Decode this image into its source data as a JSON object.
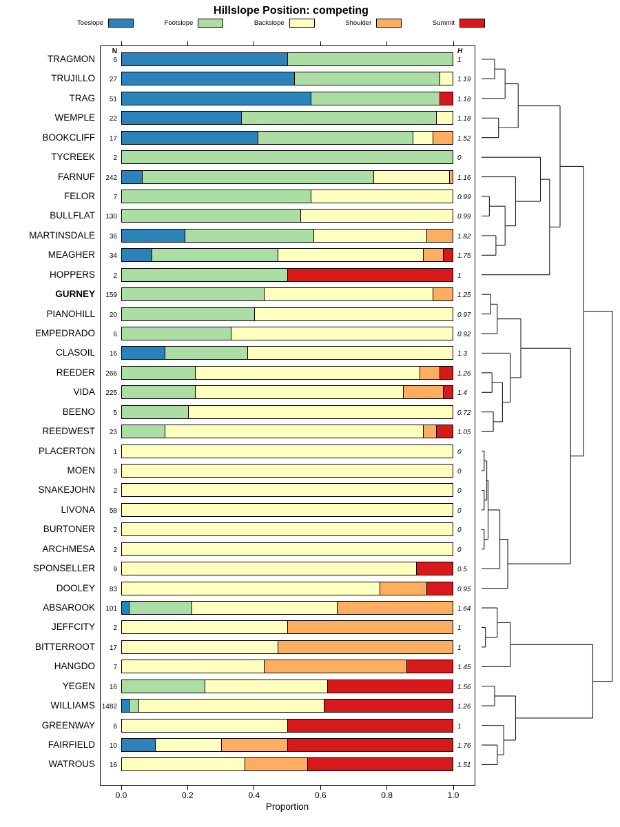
{
  "title": "Hillslope Position: competing",
  "axis": {
    "xlabel": "Proportion",
    "tick_labels": [
      "0.0",
      "0.2",
      "0.4",
      "0.6",
      "0.8",
      "1.0"
    ],
    "tick_values": [
      0,
      0.2,
      0.4,
      0.6,
      0.8,
      1.0
    ],
    "n_header": "N",
    "h_header": "H"
  },
  "legend": {
    "items": [
      {
        "label": "Toeslope",
        "color": "#2B83BA"
      },
      {
        "label": "Footslope",
        "color": "#ABDDA4"
      },
      {
        "label": "Backslope",
        "color": "#FFFFBF"
      },
      {
        "label": "Shoulder",
        "color": "#FDAE61"
      },
      {
        "label": "Summit",
        "color": "#D7191C"
      }
    ]
  },
  "chart_data": {
    "type": "bar",
    "subtype": "horizontal-stacked-proportion",
    "title": "Hillslope Position: competing",
    "xlabel": "Proportion",
    "xlim": [
      0,
      1
    ],
    "categories": [
      "Toeslope",
      "Footslope",
      "Backslope",
      "Shoulder",
      "Summit"
    ],
    "colors": [
      "#2B83BA",
      "#ABDDA4",
      "#FFFFBF",
      "#FDAE61",
      "#D7191C"
    ],
    "rows": [
      {
        "name": "TRAGMON",
        "n": 6,
        "h": "1",
        "bold": false,
        "values": [
          0.5,
          0.5,
          0.0,
          0.0,
          0.0
        ]
      },
      {
        "name": "TRUJILLO",
        "n": 27,
        "h": "1.19",
        "bold": false,
        "values": [
          0.52,
          0.44,
          0.04,
          0.0,
          0.0
        ]
      },
      {
        "name": "TRAG",
        "n": 51,
        "h": "1.18",
        "bold": false,
        "values": [
          0.57,
          0.39,
          0.0,
          0.0,
          0.04
        ]
      },
      {
        "name": "WEMPLE",
        "n": 22,
        "h": "1.18",
        "bold": false,
        "values": [
          0.36,
          0.59,
          0.05,
          0.0,
          0.0
        ]
      },
      {
        "name": "BOOKCLIFF",
        "n": 17,
        "h": "1.52",
        "bold": false,
        "values": [
          0.41,
          0.47,
          0.06,
          0.06,
          0.0
        ]
      },
      {
        "name": "TYCREEK",
        "n": 2,
        "h": "0",
        "bold": false,
        "values": [
          0.0,
          1.0,
          0.0,
          0.0,
          0.0
        ]
      },
      {
        "name": "FARNUF",
        "n": 242,
        "h": "1.16",
        "bold": false,
        "values": [
          0.06,
          0.7,
          0.23,
          0.01,
          0.0
        ]
      },
      {
        "name": "FELOR",
        "n": 7,
        "h": "0.99",
        "bold": false,
        "values": [
          0.0,
          0.57,
          0.43,
          0.0,
          0.0
        ]
      },
      {
        "name": "BULLFLAT",
        "n": 130,
        "h": "0.99",
        "bold": false,
        "values": [
          0.0,
          0.54,
          0.46,
          0.0,
          0.0
        ]
      },
      {
        "name": "MARTINSDALE",
        "n": 36,
        "h": "1.82",
        "bold": false,
        "values": [
          0.19,
          0.39,
          0.34,
          0.08,
          0.0
        ]
      },
      {
        "name": "MEAGHER",
        "n": 34,
        "h": "1.75",
        "bold": false,
        "values": [
          0.09,
          0.38,
          0.44,
          0.06,
          0.03
        ]
      },
      {
        "name": "HOPPERS",
        "n": 2,
        "h": "1",
        "bold": false,
        "values": [
          0.0,
          0.5,
          0.0,
          0.0,
          0.5
        ]
      },
      {
        "name": "GURNEY",
        "n": 159,
        "h": "1.25",
        "bold": true,
        "values": [
          0.0,
          0.43,
          0.51,
          0.06,
          0.0
        ]
      },
      {
        "name": "PIANOHILL",
        "n": 20,
        "h": "0.97",
        "bold": false,
        "values": [
          0.0,
          0.4,
          0.6,
          0.0,
          0.0
        ]
      },
      {
        "name": "EMPEDRADO",
        "n": 6,
        "h": "0.92",
        "bold": false,
        "values": [
          0.0,
          0.33,
          0.67,
          0.0,
          0.0
        ]
      },
      {
        "name": "CLASOIL",
        "n": 16,
        "h": "1.3",
        "bold": false,
        "values": [
          0.13,
          0.25,
          0.62,
          0.0,
          0.0
        ]
      },
      {
        "name": "REEDER",
        "n": 266,
        "h": "1.26",
        "bold": false,
        "values": [
          0.0,
          0.22,
          0.68,
          0.06,
          0.04
        ]
      },
      {
        "name": "VIDA",
        "n": 225,
        "h": "1.4",
        "bold": false,
        "values": [
          0.0,
          0.22,
          0.63,
          0.12,
          0.03
        ]
      },
      {
        "name": "BEENO",
        "n": 5,
        "h": "0.72",
        "bold": false,
        "values": [
          0.0,
          0.2,
          0.8,
          0.0,
          0.0
        ]
      },
      {
        "name": "REEDWEST",
        "n": 23,
        "h": "1.05",
        "bold": false,
        "values": [
          0.0,
          0.13,
          0.78,
          0.04,
          0.05
        ]
      },
      {
        "name": "PLACERTON",
        "n": 1,
        "h": "0",
        "bold": false,
        "values": [
          0.0,
          0.0,
          1.0,
          0.0,
          0.0
        ]
      },
      {
        "name": "MOEN",
        "n": 3,
        "h": "0",
        "bold": false,
        "values": [
          0.0,
          0.0,
          1.0,
          0.0,
          0.0
        ]
      },
      {
        "name": "SNAKEJOHN",
        "n": 2,
        "h": "0",
        "bold": false,
        "values": [
          0.0,
          0.0,
          1.0,
          0.0,
          0.0
        ]
      },
      {
        "name": "LIVONA",
        "n": 58,
        "h": "0",
        "bold": false,
        "values": [
          0.0,
          0.0,
          1.0,
          0.0,
          0.0
        ]
      },
      {
        "name": "BURTONER",
        "n": 2,
        "h": "0",
        "bold": false,
        "values": [
          0.0,
          0.0,
          1.0,
          0.0,
          0.0
        ]
      },
      {
        "name": "ARCHMESA",
        "n": 2,
        "h": "0",
        "bold": false,
        "values": [
          0.0,
          0.0,
          1.0,
          0.0,
          0.0
        ]
      },
      {
        "name": "SPONSELLER",
        "n": 9,
        "h": "0.5",
        "bold": false,
        "values": [
          0.0,
          0.0,
          0.89,
          0.0,
          0.11
        ]
      },
      {
        "name": "DOOLEY",
        "n": 83,
        "h": "0.95",
        "bold": false,
        "values": [
          0.0,
          0.0,
          0.78,
          0.14,
          0.08
        ]
      },
      {
        "name": "ABSAROOK",
        "n": 101,
        "h": "1.64",
        "bold": false,
        "values": [
          0.02,
          0.19,
          0.44,
          0.35,
          0.0
        ]
      },
      {
        "name": "JEFFCITY",
        "n": 2,
        "h": "1",
        "bold": false,
        "values": [
          0.0,
          0.0,
          0.5,
          0.5,
          0.0
        ]
      },
      {
        "name": "BITTERROOT",
        "n": 17,
        "h": "1",
        "bold": false,
        "values": [
          0.0,
          0.0,
          0.47,
          0.53,
          0.0
        ]
      },
      {
        "name": "HANGDO",
        "n": 7,
        "h": "1.45",
        "bold": false,
        "values": [
          0.0,
          0.0,
          0.43,
          0.43,
          0.14
        ]
      },
      {
        "name": "YEGEN",
        "n": 16,
        "h": "1.56",
        "bold": false,
        "values": [
          0.0,
          0.25,
          0.37,
          0.0,
          0.38
        ]
      },
      {
        "name": "WILLIAMS",
        "n": 1482,
        "h": "1.26",
        "bold": false,
        "values": [
          0.02,
          0.03,
          0.56,
          0.0,
          0.39
        ]
      },
      {
        "name": "GREENWAY",
        "n": 6,
        "h": "1",
        "bold": false,
        "values": [
          0.0,
          0.0,
          0.5,
          0.0,
          0.5
        ]
      },
      {
        "name": "FAIRFIELD",
        "n": 10,
        "h": "1.76",
        "bold": false,
        "values": [
          0.1,
          0.0,
          0.2,
          0.2,
          0.5
        ]
      },
      {
        "name": "WATROUS",
        "n": 16,
        "h": "1.51",
        "bold": false,
        "values": [
          0.0,
          0.0,
          0.37,
          0.19,
          0.44
        ]
      }
    ],
    "dendrogram": {
      "h": 1.0,
      "c": [
        {
          "h": 0.78,
          "c": [
            {
              "h": 0.6,
              "c": [
                {
                  "h": 0.28,
                  "c": [
                    {
                      "h": 0.18,
                      "c": [
                        {
                          "h": 0.1,
                          "c": [
                            0,
                            1
                          ]
                        },
                        2
                      ]
                    },
                    {
                      "h": 0.13,
                      "c": [
                        3,
                        4
                      ]
                    }
                  ]
                },
                {
                  "h": 0.52,
                  "c": [
                    {
                      "h": 0.45,
                      "c": [
                        5,
                        {
                          "h": 0.26,
                          "c": [
                            6,
                            {
                              "h": 0.18,
                              "c": [
                                {
                                  "h": 0.06,
                                  "c": [
                                    7,
                                    8
                                  ]
                                },
                                {
                                  "h": 0.11,
                                  "c": [
                                    9,
                                    10
                                  ]
                                }
                              ]
                            }
                          ]
                        }
                      ]
                    },
                    11
                  ]
                }
              ]
            },
            {
              "h": 0.68,
              "c": [
                {
                  "h": 0.3,
                  "c": [
                    {
                      "h": 0.12,
                      "c": [
                        {
                          "h": 0.07,
                          "c": [
                            12,
                            13
                          ]
                        },
                        14
                      ]
                    },
                    {
                      "h": 0.22,
                      "c": [
                        15,
                        {
                          "h": 0.16,
                          "c": [
                            {
                              "h": 0.08,
                              "c": [
                                16,
                                17
                              ]
                            },
                            {
                              "h": 0.09,
                              "c": [
                                18,
                                19
                              ]
                            }
                          ]
                        }
                      ]
                    }
                  ]
                },
                {
                  "h": 0.2,
                  "c": [
                    {
                      "h": 0.14,
                      "c": [
                        {
                          "h": 0.05,
                          "c": [
                            {
                              "h": 0.04,
                              "c": [
                                {
                                  "h": 0.02,
                                  "c": [
                                    20,
                                    21
                                  ]
                                },
                                {
                                  "h": 0.02,
                                  "c": [
                                    22,
                                    23
                                  ]
                                }
                              ]
                            },
                            {
                              "h": 0.02,
                              "c": [
                                24,
                                25
                              ]
                            }
                          ]
                        },
                        26
                      ]
                    },
                    27
                  ]
                }
              ]
            }
          ]
        },
        {
          "h": 0.85,
          "c": [
            {
              "h": 0.22,
              "c": [
                {
                  "h": 0.12,
                  "c": [
                    28,
                    {
                      "h": 0.03,
                      "c": [
                        29,
                        30
                      ]
                    }
                  ]
                },
                31
              ]
            },
            {
              "h": 0.26,
              "c": [
                {
                  "h": 0.1,
                  "c": [
                    32,
                    33
                  ]
                },
                {
                  "h": 0.17,
                  "c": [
                    34,
                    {
                      "h": 0.12,
                      "c": [
                        35,
                        36
                      ]
                    }
                  ]
                }
              ]
            }
          ]
        }
      ]
    }
  }
}
